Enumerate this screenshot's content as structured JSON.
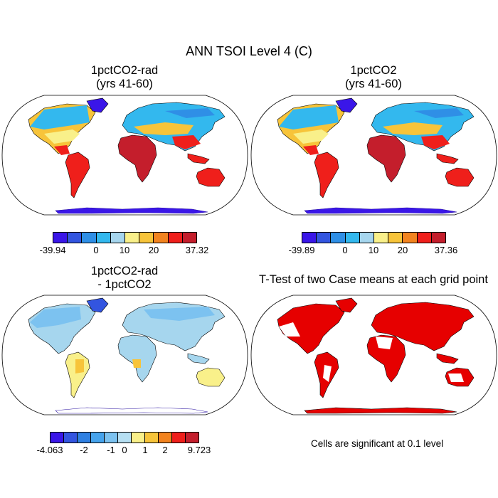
{
  "figure": {
    "title": "ANN TSOI Level 4 (C)"
  },
  "panels": [
    {
      "title_line1": "1pctCO2-rad",
      "title_line2": "(yrs 41-60)"
    },
    {
      "title_line1": "1pctCO2",
      "title_line2": "(yrs 41-60)"
    },
    {
      "title_line1": "1pctCO2-rad",
      "title_line2": "- 1pctCO2"
    },
    {
      "title_line1": "T-Test of two Case means at each grid point",
      "title_line2": ""
    }
  ],
  "colorbars": [
    {
      "colors": [
        "#3a16e8",
        "#3355e0",
        "#2f8fe6",
        "#33b8ee",
        "#a6d6ee",
        "#f9f08a",
        "#f7c43a",
        "#f2831f",
        "#ef1f1b",
        "#c41e2c"
      ],
      "labels": [
        "-39.94",
        "0",
        "10",
        "20",
        "37.32"
      ]
    },
    {
      "colors": [
        "#3a16e8",
        "#3355e0",
        "#2f8fe6",
        "#33b8ee",
        "#a6d6ee",
        "#f9f08a",
        "#f7c43a",
        "#f2831f",
        "#ef1f1b",
        "#c41e2c"
      ],
      "labels": [
        "-39.89",
        "0",
        "10",
        "20",
        "37.36"
      ]
    },
    {
      "colors": [
        "#3a16e8",
        "#3355e0",
        "#2f80e2",
        "#46a3ec",
        "#7cc2f0",
        "#b6dff2",
        "#f9f08a",
        "#f7c43a",
        "#f2831f",
        "#ef1f1b",
        "#c41e2c"
      ],
      "labels": [
        "-4.063",
        "-2",
        "-1",
        "0",
        "1",
        "2",
        "9.723"
      ]
    }
  ],
  "significance_note": "Cells are significant at 0.1 level",
  "colors": {
    "significant": "#e60000",
    "ocean": "#ffffff",
    "coast": "#000000"
  }
}
